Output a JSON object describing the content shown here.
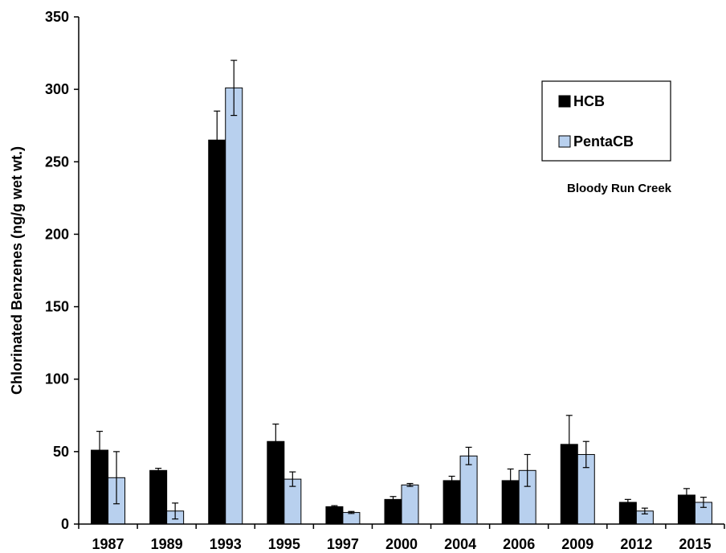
{
  "chart_data": {
    "type": "bar",
    "title": "",
    "xlabel": "",
    "ylabel": "Chlorinated Benzenes (ng/g wet wt.)",
    "ylim": [
      0,
      350
    ],
    "yticks": [
      0,
      50,
      100,
      150,
      200,
      250,
      300,
      350
    ],
    "categories": [
      "1987",
      "1989",
      "1993",
      "1995",
      "1997",
      "2000",
      "2004",
      "2006",
      "2009",
      "2012",
      "2015"
    ],
    "series": [
      {
        "name": "HCB",
        "color": "#000000",
        "values": [
          51,
          37,
          265,
          57,
          12,
          17,
          30,
          30,
          55,
          15,
          20
        ],
        "errors": [
          13,
          1.5,
          20,
          12,
          0.7,
          2,
          3,
          8,
          20,
          2,
          4.5
        ]
      },
      {
        "name": "PentaCB",
        "color": "#b8d0ee",
        "values": [
          32,
          9,
          301,
          31,
          8,
          27,
          47,
          37,
          48,
          9,
          15
        ],
        "errors": [
          18,
          5.5,
          19,
          5,
          0.7,
          1,
          6,
          11,
          9,
          2,
          3.5
        ]
      }
    ],
    "annotation": "Bloody Run Creek",
    "legend_position": "top-right",
    "grid": false
  }
}
